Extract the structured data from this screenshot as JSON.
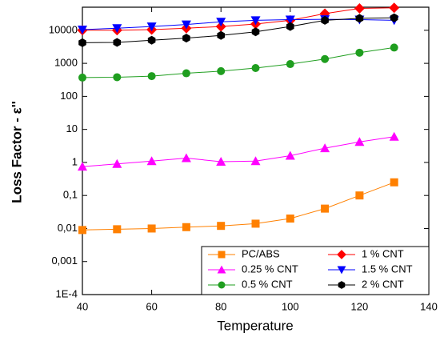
{
  "chart_data": {
    "type": "line",
    "log_y": true,
    "xlabel": "Temperature",
    "ylabel": "Loss Factor - ε''",
    "x": [
      40,
      50,
      60,
      70,
      80,
      90,
      100,
      110,
      120,
      130
    ],
    "xlim": [
      40,
      140
    ],
    "xticks": [
      40,
      60,
      80,
      100,
      120,
      140
    ],
    "ylim": [
      0.0001,
      50000
    ],
    "yticks": [
      {
        "value": 0.0001,
        "label": "1E-4"
      },
      {
        "value": 0.001,
        "label": "0,001"
      },
      {
        "value": 0.01,
        "label": "0,01"
      },
      {
        "value": 0.1,
        "label": "0,1"
      },
      1,
      10,
      100,
      1000,
      10000
    ],
    "legend": "lower right",
    "series": [
      {
        "name": "PC/ABS",
        "color": "#ff8000",
        "marker": "square",
        "values": [
          0.009,
          0.0095,
          0.01,
          0.011,
          0.012,
          0.014,
          0.02,
          0.04,
          0.1,
          0.25
        ]
      },
      {
        "name": "0.25 % CNT",
        "color": "#ff00ff",
        "marker": "triangle",
        "values": [
          0.75,
          0.9,
          1.1,
          1.35,
          1.05,
          1.1,
          1.6,
          2.7,
          4.2,
          6
        ]
      },
      {
        "name": "0.5 % CNT",
        "color": "#1f9e1f",
        "marker": "circle",
        "values": [
          370,
          380,
          410,
          500,
          580,
          720,
          950,
          1350,
          2100,
          3000
        ]
      },
      {
        "name": "1 % CNT",
        "color": "#ff0000",
        "marker": "diamond",
        "values": [
          10000,
          10000,
          10500,
          11500,
          13000,
          15500,
          20000,
          32000,
          46000,
          48000
        ]
      },
      {
        "name": "1.5 % CNT",
        "color": "#0000ff",
        "marker": "triangle-down",
        "values": [
          10500,
          11500,
          13000,
          15000,
          18000,
          20000,
          21000,
          21500,
          21000,
          20000
        ]
      },
      {
        "name": "2 % CNT",
        "color": "#000000",
        "marker": "hexagon",
        "values": [
          4200,
          4300,
          5000,
          5800,
          7000,
          9000,
          13000,
          20000,
          23000,
          24000
        ]
      }
    ]
  }
}
